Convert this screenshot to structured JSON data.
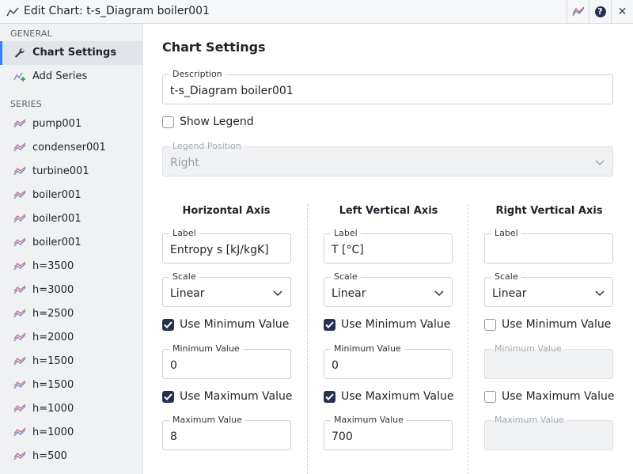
{
  "window": {
    "title": "Edit Chart: t-s_Diagram boiler001",
    "app_icon": "chart-line-icon",
    "buttons": [
      "chart-icon",
      "help-icon",
      "close-icon"
    ],
    "help_glyph": "?",
    "close_glyph": "✕"
  },
  "sidebar": {
    "general_header": "GENERAL",
    "general_items": [
      {
        "label": "Chart Settings",
        "icon": "wrench-icon",
        "active": true
      },
      {
        "label": "Add Series",
        "icon": "add-series-icon",
        "active": false
      }
    ],
    "series_header": "SERIES",
    "series_items": [
      {
        "label": "pump001"
      },
      {
        "label": "condenser001"
      },
      {
        "label": "turbine001"
      },
      {
        "label": "boiler001"
      },
      {
        "label": "boiler001"
      },
      {
        "label": "boiler001"
      },
      {
        "label": "h=3500"
      },
      {
        "label": "h=3000"
      },
      {
        "label": "h=2500"
      },
      {
        "label": "h=2000"
      },
      {
        "label": "h=1500"
      },
      {
        "label": "h=1500"
      },
      {
        "label": "h=1000"
      },
      {
        "label": "h=1000"
      },
      {
        "label": "h=500"
      }
    ]
  },
  "main": {
    "title": "Chart Settings",
    "description": {
      "label": "Description",
      "value": "t-s_Diagram boiler001"
    },
    "show_legend": {
      "label": "Show Legend",
      "checked": false
    },
    "legend_position": {
      "label": "Legend Position",
      "value": "Right",
      "disabled": true
    },
    "axes": [
      {
        "title": "Horizontal Axis",
        "label_field": {
          "label": "Label",
          "value": "Entropy s [kJ/kgK]"
        },
        "scale": {
          "label": "Scale",
          "value": "Linear"
        },
        "use_min": {
          "label": "Use Minimum Value",
          "checked": true
        },
        "min": {
          "label": "Minimum Value",
          "value": "0"
        },
        "use_max": {
          "label": "Use Maximum Value",
          "checked": true
        },
        "max": {
          "label": "Maximum Value",
          "value": "8"
        }
      },
      {
        "title": "Left Vertical Axis",
        "label_field": {
          "label": "Label",
          "value": "T [°C]"
        },
        "scale": {
          "label": "Scale",
          "value": "Linear"
        },
        "use_min": {
          "label": "Use Minimum Value",
          "checked": true
        },
        "min": {
          "label": "Minimum Value",
          "value": "0"
        },
        "use_max": {
          "label": "Use Maximum Value",
          "checked": true
        },
        "max": {
          "label": "Maximum Value",
          "value": "700"
        }
      },
      {
        "title": "Right Vertical Axis",
        "label_field": {
          "label": "Label",
          "value": ""
        },
        "scale": {
          "label": "Scale",
          "value": "Linear"
        },
        "use_min": {
          "label": "Use Minimum Value",
          "checked": false
        },
        "min": {
          "label": "Minimum Value",
          "value": ""
        },
        "use_max": {
          "label": "Use Maximum Value",
          "checked": false
        },
        "max": {
          "label": "Maximum Value",
          "value": ""
        }
      }
    ]
  },
  "colors": {
    "accent": "#3b82f6",
    "checkbox_checked": "#26324d",
    "series_icon": "#7b84b8"
  }
}
